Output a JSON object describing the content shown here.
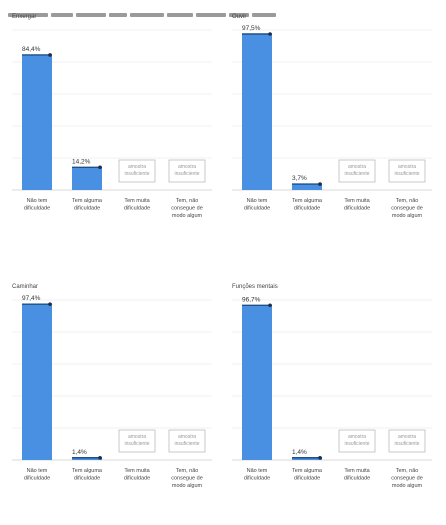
{
  "header": {
    "title": ""
  },
  "chart_data": [
    {
      "type": "bar",
      "title": "Enxergar",
      "categories": [
        "Não tem dificuldade",
        "Tem alguma dificuldade",
        "Tem muita dificuldade",
        "Tem, não consegue de modo algum"
      ],
      "values": [
        84.4,
        14.2,
        null,
        null
      ],
      "value_labels": [
        "84,4%",
        "14,2%",
        "",
        ""
      ],
      "missing_label": "amostra insuficiente",
      "ylim": [
        0,
        100
      ],
      "grid": true,
      "color": "#4a90e2"
    },
    {
      "type": "bar",
      "title": "Ouvir",
      "categories": [
        "Não tem dificuldade",
        "Tem alguma dificuldade",
        "Tem muita dificuldade",
        "Tem, não consegue de modo algum"
      ],
      "values": [
        97.5,
        3.7,
        null,
        null
      ],
      "value_labels": [
        "97,5%",
        "3,7%",
        "",
        ""
      ],
      "missing_label": "amostra insuficiente",
      "ylim": [
        0,
        100
      ],
      "grid": true,
      "color": "#4a90e2"
    },
    {
      "type": "bar",
      "title": "Caminhar",
      "categories": [
        "Não tem dificuldade",
        "Tem alguma dificuldade",
        "Tem muita dificuldade",
        "Tem, não consegue de modo algum"
      ],
      "values": [
        97.4,
        1.4,
        null,
        null
      ],
      "value_labels": [
        "97,4%",
        "1,4%",
        "",
        ""
      ],
      "missing_label": "amostra insuficiente",
      "ylim": [
        0,
        100
      ],
      "grid": true,
      "color": "#4a90e2"
    },
    {
      "type": "bar",
      "title": "Funções mentais",
      "categories": [
        "Não tem dificuldade",
        "Tem alguma dificuldade",
        "Tem muita dificuldade",
        "Tem, não consegue de modo algum"
      ],
      "values": [
        96.7,
        1.4,
        null,
        null
      ],
      "value_labels": [
        "96,7%",
        "1,4%",
        "",
        ""
      ],
      "missing_label": "amostra insuficiente",
      "ylim": [
        0,
        100
      ],
      "grid": true,
      "color": "#4a90e2"
    }
  ]
}
